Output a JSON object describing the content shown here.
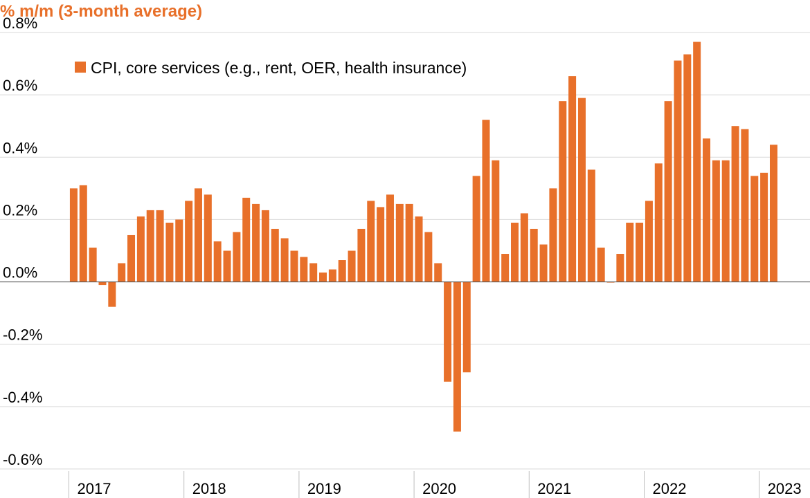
{
  "chart_data": {
    "type": "bar",
    "title": "",
    "ylabel": "% m/m (3-month average)",
    "xlabel": "",
    "ylim": [
      -0.6,
      0.8
    ],
    "y_ticks": [
      "0.8%",
      "0.6%",
      "0.4%",
      "0.2%",
      "0.0%",
      "-0.2%",
      "-0.4%",
      "-0.6%"
    ],
    "y_tick_values": [
      0.8,
      0.6,
      0.4,
      0.2,
      0.0,
      -0.2,
      -0.4,
      -0.6
    ],
    "x_tick_labels": [
      "2017",
      "2018",
      "2019",
      "2020",
      "2021",
      "2022",
      "2023"
    ],
    "start": "2017-01",
    "grid": true,
    "legend_position": "top-left",
    "color": "#e8702a",
    "series": [
      {
        "name": "CPI, core services (e.g., rent, OER, health insurance)",
        "values": [
          0.3,
          0.31,
          0.11,
          -0.01,
          -0.08,
          0.06,
          0.15,
          0.21,
          0.23,
          0.23,
          0.19,
          0.2,
          0.26,
          0.3,
          0.28,
          0.13,
          0.1,
          0.16,
          0.27,
          0.25,
          0.23,
          0.17,
          0.14,
          0.1,
          0.08,
          0.06,
          0.03,
          0.04,
          0.07,
          0.1,
          0.17,
          0.26,
          0.24,
          0.28,
          0.25,
          0.25,
          0.21,
          0.16,
          0.06,
          -0.32,
          -0.48,
          -0.29,
          0.34,
          0.52,
          0.39,
          0.09,
          0.19,
          0.22,
          0.17,
          0.12,
          0.3,
          0.58,
          0.66,
          0.59,
          0.36,
          0.11,
          0.0,
          0.09,
          0.19,
          0.19,
          0.26,
          0.38,
          0.58,
          0.71,
          0.73,
          0.77,
          0.46,
          0.39,
          0.39,
          0.5,
          0.49,
          0.34,
          0.35,
          0.44
        ]
      }
    ]
  }
}
